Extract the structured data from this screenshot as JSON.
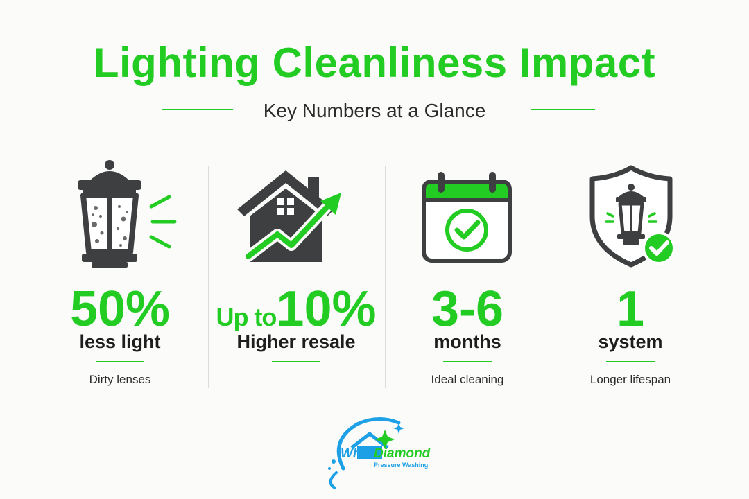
{
  "header": {
    "title": "Lighting Cleanliness Impact",
    "subtitle": "Key Numbers at a Glance"
  },
  "stats": [
    {
      "icon": "dirty-lantern-icon",
      "value": "50%",
      "label": "less light",
      "note": "Dirty lenses"
    },
    {
      "icon": "house-growth-icon",
      "prefix": "Up to",
      "value": "10%",
      "label": "Higher resale",
      "note": ""
    },
    {
      "icon": "calendar-check-icon",
      "value": "3-6",
      "label": "months",
      "note": "Ideal cleaning"
    },
    {
      "icon": "shield-lantern-icon",
      "value": "1",
      "label": "system",
      "note": "Longer lifespan"
    }
  ],
  "logo": {
    "icon": "white-diamond-logo-icon",
    "name_part1": "White",
    "name_part2": "Diamond",
    "tagline": "Pressure Washing"
  },
  "colors": {
    "accent": "#22cc22",
    "dark": "#3d3f41",
    "text": "#1e1e1e",
    "logo_blue": "#1ea0e6"
  }
}
